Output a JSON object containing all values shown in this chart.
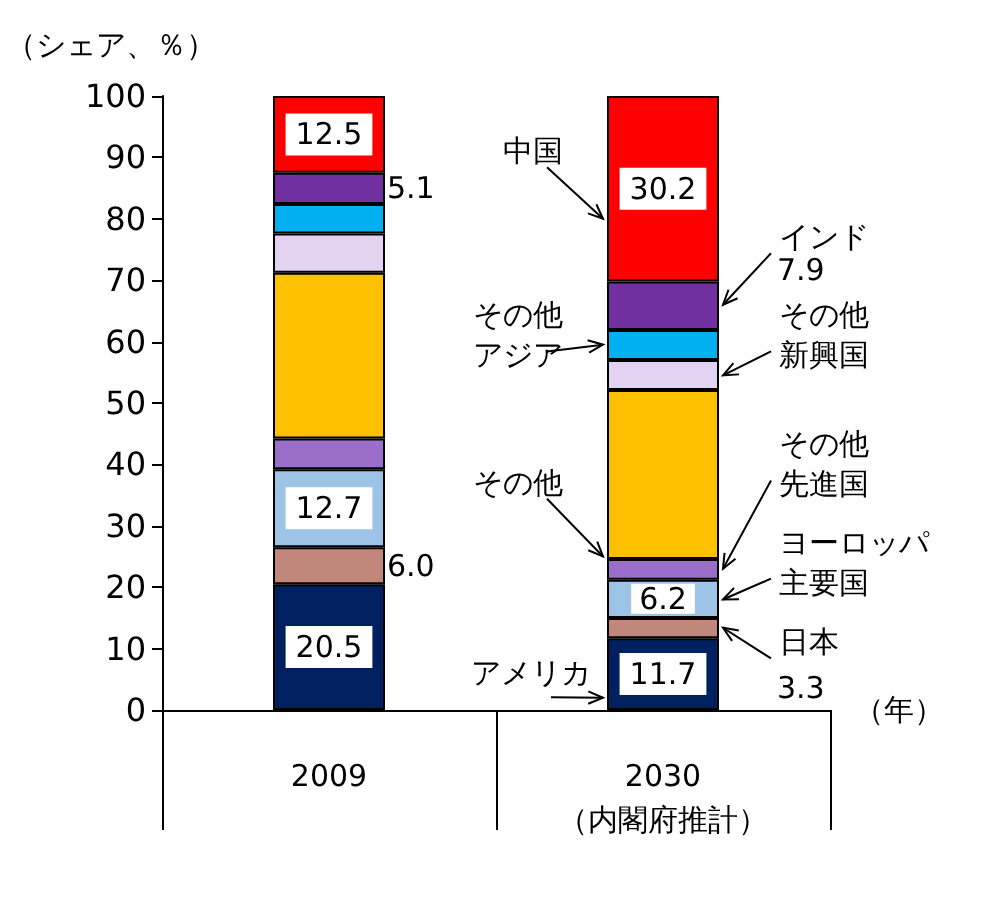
{
  "chart_data": {
    "type": "bar",
    "stacked": true,
    "ylabel": "（シェア、％）",
    "xlabel": "（年）",
    "categories": [
      "2009",
      "2030\n（内閣府推計）"
    ],
    "ylim": [
      0,
      100
    ],
    "yticks": [
      0,
      10,
      20,
      30,
      40,
      50,
      60,
      70,
      80,
      90,
      100
    ],
    "grid": false,
    "legend": "right",
    "series": [
      {
        "name": "アメリカ",
        "color": "#002060",
        "values": [
          20.5,
          11.7
        ],
        "value_labels": [
          "20.5",
          "11.7"
        ]
      },
      {
        "name": "日本",
        "color": "#c0877a",
        "values": [
          6.0,
          3.3
        ],
        "value_labels": [
          "6.0",
          "3.3"
        ]
      },
      {
        "name": "ヨーロッパ主要国",
        "color": "#9dc3e6",
        "values": [
          12.7,
          6.2
        ],
        "value_labels": [
          "12.7",
          "6.2"
        ]
      },
      {
        "name": "その他先進国",
        "color": "#9b6fc9",
        "values": [
          5.0,
          3.4
        ]
      },
      {
        "name": "その他",
        "color": "#ffc000",
        "values": [
          27.0,
          27.5
        ]
      },
      {
        "name": "その他新興国",
        "color": "#e3d3f2",
        "values": [
          6.4,
          4.9
        ]
      },
      {
        "name": "その他アジア",
        "color": "#00b0f0",
        "values": [
          4.8,
          4.9
        ]
      },
      {
        "name": "インド",
        "color": "#7030a0",
        "values": [
          5.1,
          7.9
        ],
        "value_labels": [
          "5.1",
          "7.9"
        ]
      },
      {
        "name": "中国",
        "color": "#ff0000",
        "values": [
          12.5,
          30.2
        ],
        "value_labels": [
          "12.5",
          "30.2"
        ]
      }
    ]
  }
}
